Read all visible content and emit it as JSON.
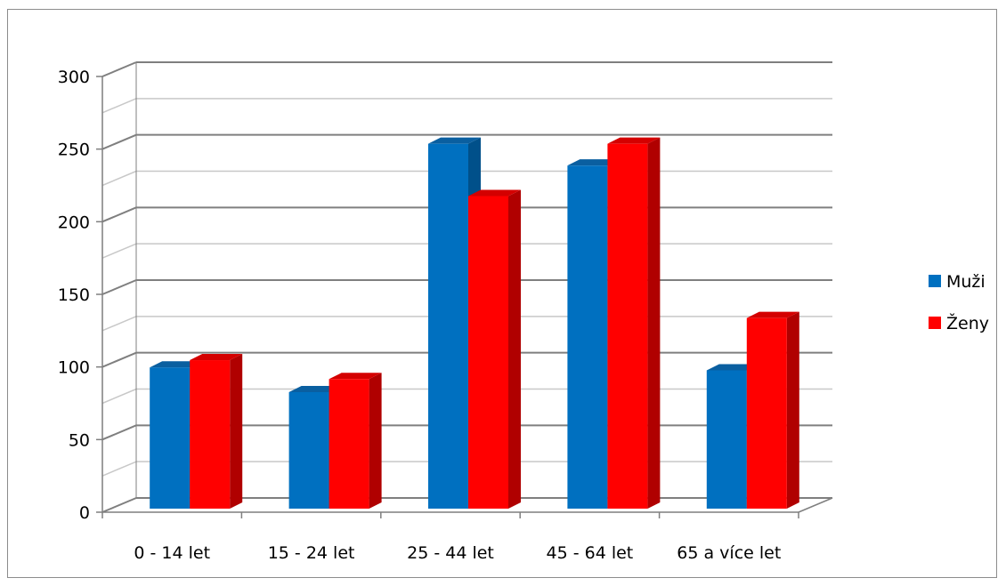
{
  "chart_data": {
    "type": "bar",
    "categories": [
      "0 - 14 let",
      "15 - 24 let",
      "25 - 44 let",
      "45 - 64 let",
      "65 a více let"
    ],
    "series": [
      {
        "name": "Muži",
        "values": [
          96,
          79,
          250,
          235,
          94
        ],
        "color": "#0070c0",
        "side": "#00508a",
        "top": "#0a5fa0"
      },
      {
        "name": "Ženy",
        "values": [
          101,
          88,
          214,
          250,
          130
        ],
        "color": "#ff0000",
        "side": "#b00000",
        "top": "#d40000"
      }
    ],
    "ylim": [
      0,
      300
    ],
    "yticks": [
      0,
      50,
      100,
      150,
      200,
      250,
      300
    ],
    "grid": true,
    "legend": "right",
    "title": "",
    "xlabel": "",
    "ylabel": ""
  }
}
